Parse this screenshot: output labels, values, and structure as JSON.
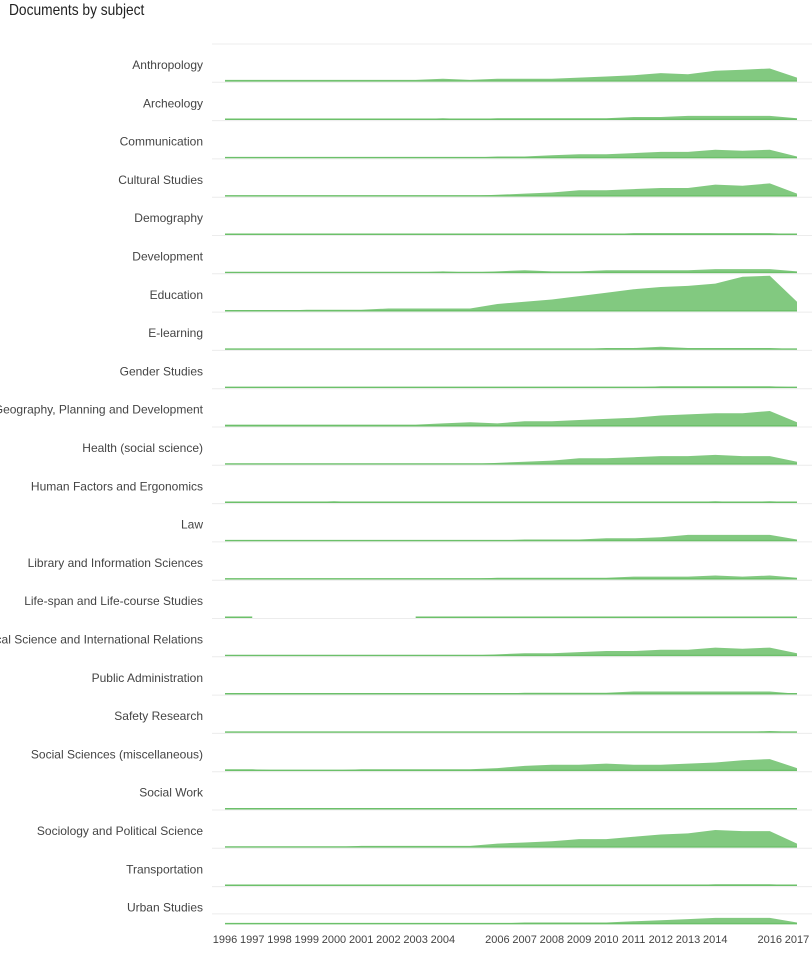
{
  "chart_data": {
    "type": "area",
    "title": "Documents by subject",
    "layout": "small multiples, one row per subject",
    "grid": true,
    "years": [
      1996,
      1997,
      1998,
      1999,
      2000,
      2001,
      2002,
      2003,
      2004,
      2005,
      2006,
      2007,
      2008,
      2009,
      2010,
      2011,
      2012,
      2013,
      2014,
      2015,
      2016,
      2017
    ],
    "year_tick_labels": [
      "1996",
      "1997",
      "1998",
      "1999",
      "2000",
      "2001",
      "2002",
      "2003",
      "2004",
      "",
      "2006",
      "2007",
      "2008",
      "2009",
      "2010",
      "2011",
      "2012",
      "2013",
      "2014",
      "",
      "2016",
      "2017"
    ],
    "y_scale_max": 30,
    "series_color": "#6cc06a",
    "series": [
      {
        "name": "Anthropology",
        "values": [
          1,
          1,
          1,
          1,
          1,
          1,
          1,
          1,
          2,
          1,
          2,
          2,
          2,
          3,
          4,
          5,
          7,
          6,
          9,
          10,
          11,
          3
        ]
      },
      {
        "name": "Archeology",
        "values": [
          0,
          0,
          0,
          0,
          0,
          0,
          0,
          0,
          1,
          0,
          1,
          1,
          1,
          1,
          1,
          2,
          2,
          3,
          3,
          3,
          3,
          1
        ]
      },
      {
        "name": "Communication",
        "values": [
          0,
          0,
          0,
          0,
          0,
          0,
          0,
          0,
          0,
          0,
          1,
          1,
          2,
          3,
          3,
          4,
          5,
          5,
          7,
          6,
          7,
          1
        ]
      },
      {
        "name": "Cultural Studies",
        "values": [
          0,
          0,
          0,
          0,
          0,
          0,
          0,
          0,
          0,
          0,
          1,
          2,
          3,
          5,
          5,
          6,
          7,
          7,
          10,
          9,
          11,
          2
        ]
      },
      {
        "name": "Demography",
        "values": [
          0,
          0,
          0,
          0,
          0,
          0,
          0,
          0,
          0,
          0,
          0,
          0,
          0,
          0,
          0,
          1,
          1,
          1,
          1,
          1,
          1,
          0
        ]
      },
      {
        "name": "Development",
        "values": [
          0,
          0,
          0,
          0,
          0,
          0,
          0,
          0,
          1,
          0,
          1,
          2,
          1,
          1,
          2,
          2,
          2,
          2,
          3,
          3,
          3,
          1
        ]
      },
      {
        "name": "Education",
        "values": [
          0,
          0,
          0,
          1,
          1,
          1,
          2,
          2,
          2,
          2,
          6,
          8,
          10,
          13,
          16,
          19,
          21,
          22,
          24,
          30,
          31,
          8
        ]
      },
      {
        "name": "E-learning",
        "values": [
          0,
          0,
          0,
          0,
          0,
          0,
          0,
          0,
          0,
          0,
          0,
          0,
          0,
          0,
          1,
          1,
          2,
          1,
          1,
          1,
          1,
          0
        ]
      },
      {
        "name": "Gender Studies",
        "values": [
          0,
          0,
          0,
          0,
          0,
          0,
          0,
          0,
          0,
          0,
          0,
          0,
          0,
          0,
          0,
          0,
          1,
          1,
          1,
          1,
          1,
          0
        ]
      },
      {
        "name": "Geography, Planning and Development",
        "values": [
          1,
          1,
          1,
          1,
          1,
          1,
          1,
          1,
          2,
          3,
          2,
          4,
          4,
          5,
          6,
          7,
          9,
          10,
          11,
          11,
          13,
          3
        ]
      },
      {
        "name": "Health (social science)",
        "values": [
          0,
          0,
          0,
          0,
          0,
          0,
          0,
          0,
          0,
          0,
          1,
          2,
          3,
          5,
          5,
          6,
          7,
          7,
          8,
          7,
          7,
          2
        ]
      },
      {
        "name": "Human Factors and Ergonomics",
        "values": [
          0,
          0,
          0,
          0,
          1,
          0,
          0,
          0,
          0,
          0,
          0,
          0,
          0,
          0,
          0,
          0,
          0,
          0,
          1,
          0,
          1,
          0
        ]
      },
      {
        "name": "Law",
        "values": [
          0,
          0,
          0,
          0,
          0,
          0,
          0,
          0,
          0,
          0,
          0,
          1,
          1,
          1,
          2,
          2,
          3,
          5,
          5,
          5,
          5,
          1
        ]
      },
      {
        "name": "Library and Information Sciences",
        "values": [
          0,
          0,
          0,
          0,
          0,
          0,
          0,
          0,
          0,
          0,
          1,
          1,
          1,
          1,
          1,
          2,
          2,
          2,
          3,
          2,
          3,
          1
        ]
      },
      {
        "name": "Life-span and Life-course Studies",
        "values": [
          0,
          0,
          null,
          null,
          null,
          null,
          null,
          0,
          0,
          0,
          0,
          0,
          0,
          0,
          0,
          0,
          0,
          0,
          0,
          0,
          0,
          0
        ]
      },
      {
        "name": "Political Science and International Relations",
        "values": [
          0,
          0,
          0,
          0,
          0,
          0,
          0,
          0,
          0,
          0,
          1,
          2,
          2,
          3,
          4,
          4,
          5,
          5,
          7,
          6,
          7,
          2
        ]
      },
      {
        "name": "Public Administration",
        "values": [
          0,
          0,
          0,
          0,
          0,
          0,
          0,
          0,
          0,
          0,
          0,
          1,
          1,
          1,
          1,
          2,
          2,
          2,
          2,
          2,
          2,
          0
        ]
      },
      {
        "name": "Safety Research",
        "values": [
          0,
          0,
          0,
          0,
          0,
          0,
          0,
          0,
          0,
          0,
          0,
          0,
          0,
          0,
          0,
          0,
          0,
          0,
          0,
          0,
          1,
          0
        ]
      },
      {
        "name": "Social Sciences (miscellaneous)",
        "values": [
          1,
          1,
          0,
          0,
          0,
          1,
          1,
          1,
          1,
          1,
          2,
          4,
          5,
          5,
          6,
          5,
          5,
          6,
          7,
          9,
          10,
          2
        ]
      },
      {
        "name": "Social Work",
        "values": [
          0,
          0,
          0,
          0,
          0,
          0,
          0,
          0,
          0,
          0,
          0,
          0,
          0,
          0,
          0,
          0,
          0,
          0,
          0,
          0,
          0,
          0
        ]
      },
      {
        "name": "Sociology and Political Science",
        "values": [
          0,
          0,
          0,
          0,
          0,
          1,
          1,
          1,
          1,
          1,
          3,
          4,
          5,
          7,
          7,
          9,
          11,
          12,
          15,
          14,
          14,
          3
        ]
      },
      {
        "name": "Transportation",
        "values": [
          0,
          0,
          0,
          0,
          0,
          0,
          0,
          0,
          0,
          0,
          0,
          0,
          0,
          0,
          0,
          0,
          0,
          0,
          1,
          1,
          1,
          0
        ]
      },
      {
        "name": "Urban Studies",
        "values": [
          0,
          0,
          0,
          0,
          0,
          0,
          0,
          0,
          0,
          0,
          0,
          1,
          1,
          1,
          1,
          2,
          3,
          4,
          5,
          5,
          5,
          1
        ]
      }
    ]
  }
}
